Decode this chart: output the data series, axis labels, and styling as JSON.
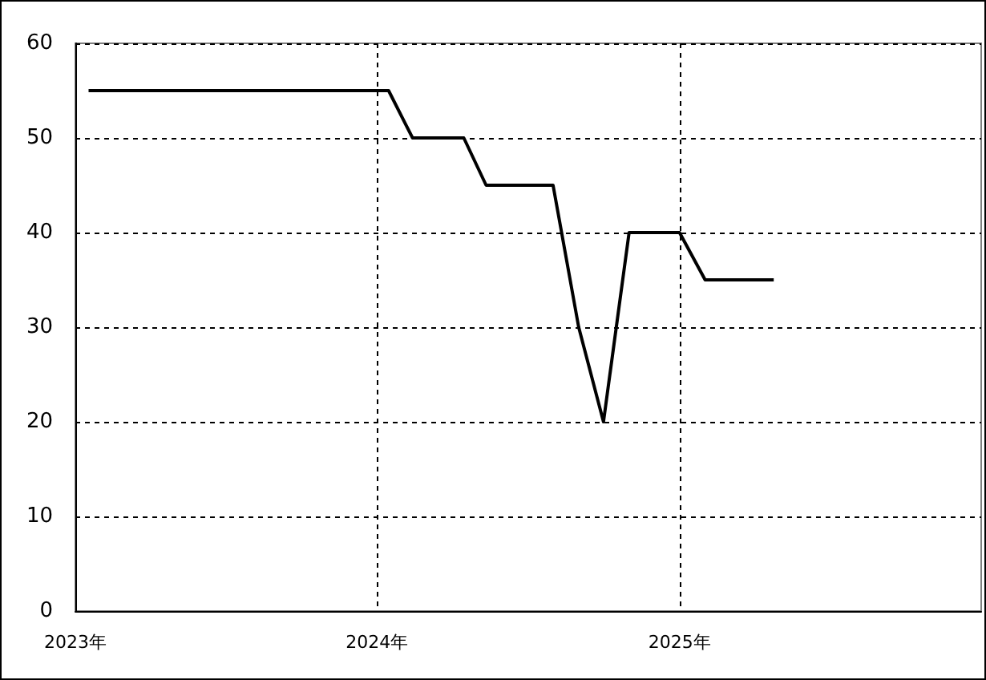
{
  "chart_data": {
    "type": "line",
    "x": [
      "2023-01-17",
      "2024-01-15",
      "2024-02-13",
      "2024-04-15",
      "2024-05-12",
      "2024-08-01",
      "2024-09-01",
      "2024-10-01",
      "2024-11-01",
      "2025-01-01",
      "2025-02-01",
      "2025-04-25"
    ],
    "series": [
      {
        "color": "#000000",
        "values": [
          55,
          55,
          50,
          50,
          45,
          45,
          30,
          20,
          40,
          40,
          35,
          35
        ]
      }
    ],
    "xlim": [
      "2023-01-01",
      "2026-01-01"
    ],
    "xticks": [
      {
        "value": "2023-01-01",
        "label": "2023年"
      },
      {
        "value": "2024-01-01",
        "label": "2024年"
      },
      {
        "value": "2025-01-01",
        "label": "2025年"
      }
    ],
    "ylim": [
      0,
      60
    ],
    "yticks": [
      0,
      10,
      20,
      30,
      40,
      50,
      60
    ],
    "grid": true,
    "marker": "none",
    "line_style": "solid"
  }
}
